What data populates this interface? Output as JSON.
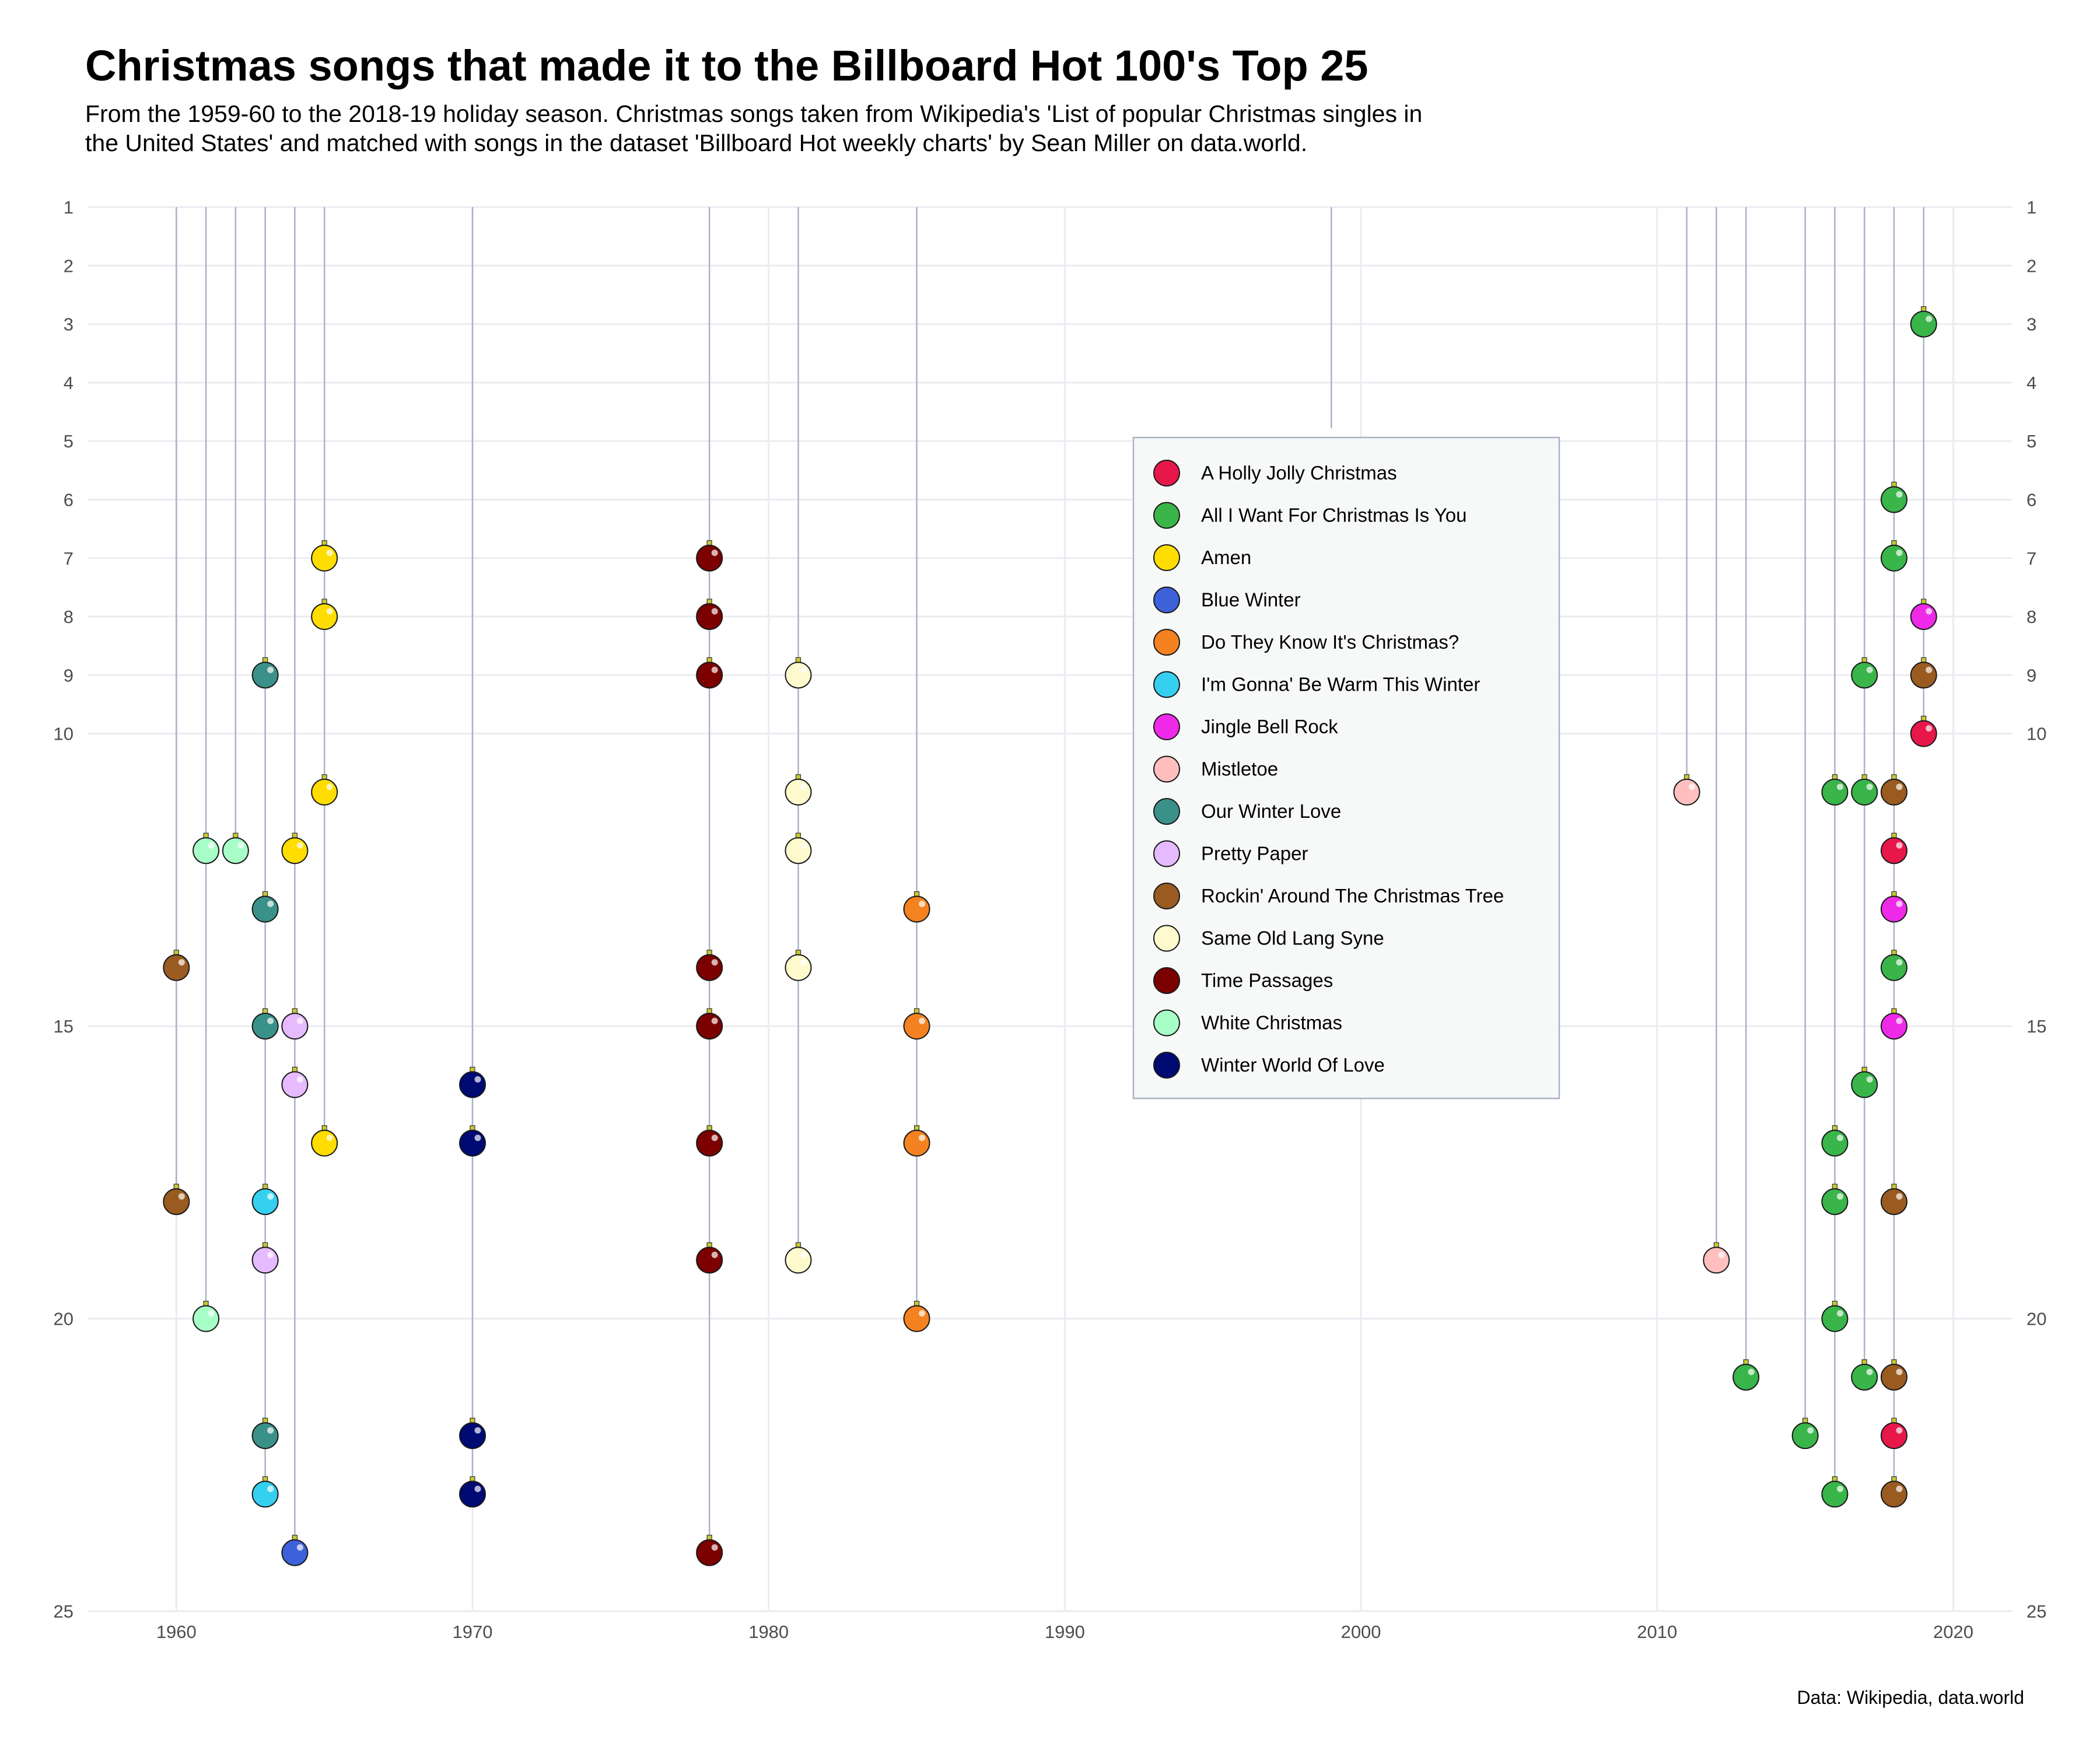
{
  "title": "Christmas songs that made it to the Billboard Hot 100's Top 25",
  "subtitle_line1": "From the 1959-60 to the 2018-19 holiday season. Christmas songs taken from Wikipedia's 'List of popular Christmas singles in",
  "subtitle_line2": "the United States' and matched with songs in the dataset 'Billboard Hot weekly charts' by Sean Miller on data.world.",
  "caption": "Data: Wikipedia, data.world",
  "chart_data": {
    "type": "scatter",
    "xlim": [
      1957,
      2022
    ],
    "ylim": [
      1,
      25
    ],
    "y_reversed": true,
    "x_ticks": [
      1960,
      1970,
      1980,
      1990,
      2000,
      2010,
      2020
    ],
    "y_ticks": [
      1,
      2,
      3,
      4,
      5,
      6,
      7,
      8,
      9,
      10,
      15,
      20,
      25
    ],
    "grid": true,
    "legend_position": "center-right",
    "colors": {
      "grid": "#ebebf2",
      "string": "#a9b3c6",
      "outline": "#1a1a1a",
      "cap": "#c8c832",
      "legend_bg": "#f7f8f8",
      "legend_border": "#a9b3c6"
    },
    "strings": [
      {
        "x": 1960,
        "bottom": 18
      },
      {
        "x": 1961,
        "bottom": 20
      },
      {
        "x": 1962,
        "bottom": 12
      },
      {
        "x": 1963,
        "bottom": 23
      },
      {
        "x": 1964,
        "bottom": 24
      },
      {
        "x": 1965,
        "bottom": 17
      },
      {
        "x": 1970,
        "bottom": 23
      },
      {
        "x": 1978,
        "bottom": 24
      },
      {
        "x": 1981,
        "bottom": 19
      },
      {
        "x": 1985,
        "bottom": 20
      },
      {
        "x": 1999,
        "bottom": 5
      },
      {
        "x": 2011,
        "bottom": 11
      },
      {
        "x": 2012,
        "bottom": 19
      },
      {
        "x": 2013,
        "bottom": 21
      },
      {
        "x": 2015,
        "bottom": 22
      },
      {
        "x": 2016,
        "bottom": 23
      },
      {
        "x": 2017,
        "bottom": 21
      },
      {
        "x": 2018,
        "bottom": 23
      },
      {
        "x": 2019,
        "bottom": 10
      }
    ],
    "series": [
      {
        "name": "A Holly Jolly Christmas",
        "color": "#e8174a",
        "points": [
          [
            2018,
            12
          ],
          [
            2018,
            22
          ],
          [
            2019,
            10
          ]
        ]
      },
      {
        "name": "All I Want For Christmas Is You",
        "color": "#39b54a",
        "points": [
          [
            2013,
            21
          ],
          [
            2015,
            22
          ],
          [
            2016,
            11
          ],
          [
            2016,
            17
          ],
          [
            2016,
            18
          ],
          [
            2016,
            20
          ],
          [
            2016,
            23
          ],
          [
            2017,
            9
          ],
          [
            2017,
            11
          ],
          [
            2017,
            16
          ],
          [
            2017,
            21
          ],
          [
            2018,
            6
          ],
          [
            2018,
            7
          ],
          [
            2018,
            14
          ],
          [
            2019,
            3
          ]
        ]
      },
      {
        "name": "Amen",
        "color": "#ffdd00",
        "points": [
          [
            1964,
            12
          ],
          [
            1965,
            7
          ],
          [
            1965,
            8
          ],
          [
            1965,
            11
          ],
          [
            1965,
            17
          ]
        ]
      },
      {
        "name": "Blue Winter",
        "color": "#3d61d8",
        "points": [
          [
            1964,
            24
          ]
        ]
      },
      {
        "name": "Do They Know It's Christmas?",
        "color": "#f58220",
        "points": [
          [
            1985,
            13
          ],
          [
            1985,
            15
          ],
          [
            1985,
            17
          ],
          [
            1985,
            20
          ]
        ]
      },
      {
        "name": "I'm Gonna' Be Warm This Winter",
        "color": "#35d0f0",
        "points": [
          [
            1963,
            18
          ],
          [
            1963,
            23
          ]
        ]
      },
      {
        "name": "Jingle Bell Rock",
        "color": "#ee2ae8",
        "points": [
          [
            2018,
            13
          ],
          [
            2018,
            15
          ],
          [
            2019,
            8
          ]
        ]
      },
      {
        "name": "Mistletoe",
        "color": "#ffbfbf",
        "points": [
          [
            2011,
            11
          ],
          [
            2012,
            19
          ]
        ]
      },
      {
        "name": "Our Winter Love",
        "color": "#3a9189",
        "points": [
          [
            1963,
            9
          ],
          [
            1963,
            13
          ],
          [
            1963,
            15
          ],
          [
            1963,
            22
          ]
        ]
      },
      {
        "name": "Pretty Paper",
        "color": "#e6baff",
        "points": [
          [
            1963,
            19
          ],
          [
            1964,
            15
          ],
          [
            1964,
            16
          ]
        ]
      },
      {
        "name": "Rockin' Around The Christmas Tree",
        "color": "#9a5b20",
        "points": [
          [
            1960,
            14
          ],
          [
            1960,
            18
          ],
          [
            2018,
            11
          ],
          [
            2018,
            18
          ],
          [
            2018,
            21
          ],
          [
            2018,
            23
          ],
          [
            2019,
            9
          ]
        ]
      },
      {
        "name": "Same Old Lang Syne",
        "color": "#fffacd",
        "points": [
          [
            1981,
            9
          ],
          [
            1981,
            11
          ],
          [
            1981,
            12
          ],
          [
            1981,
            14
          ],
          [
            1981,
            19
          ]
        ]
      },
      {
        "name": "Time Passages",
        "color": "#7c0000",
        "points": [
          [
            1978,
            7
          ],
          [
            1978,
            8
          ],
          [
            1978,
            9
          ],
          [
            1978,
            14
          ],
          [
            1978,
            15
          ],
          [
            1978,
            17
          ],
          [
            1978,
            19
          ],
          [
            1978,
            24
          ]
        ]
      },
      {
        "name": "White Christmas",
        "color": "#a7ffc7",
        "points": [
          [
            1961,
            12
          ],
          [
            1961,
            20
          ],
          [
            1962,
            12
          ]
        ]
      },
      {
        "name": "Winter World Of Love",
        "color": "#000a73",
        "points": [
          [
            1970,
            16
          ],
          [
            1970,
            17
          ],
          [
            1970,
            22
          ],
          [
            1970,
            23
          ]
        ]
      }
    ]
  }
}
